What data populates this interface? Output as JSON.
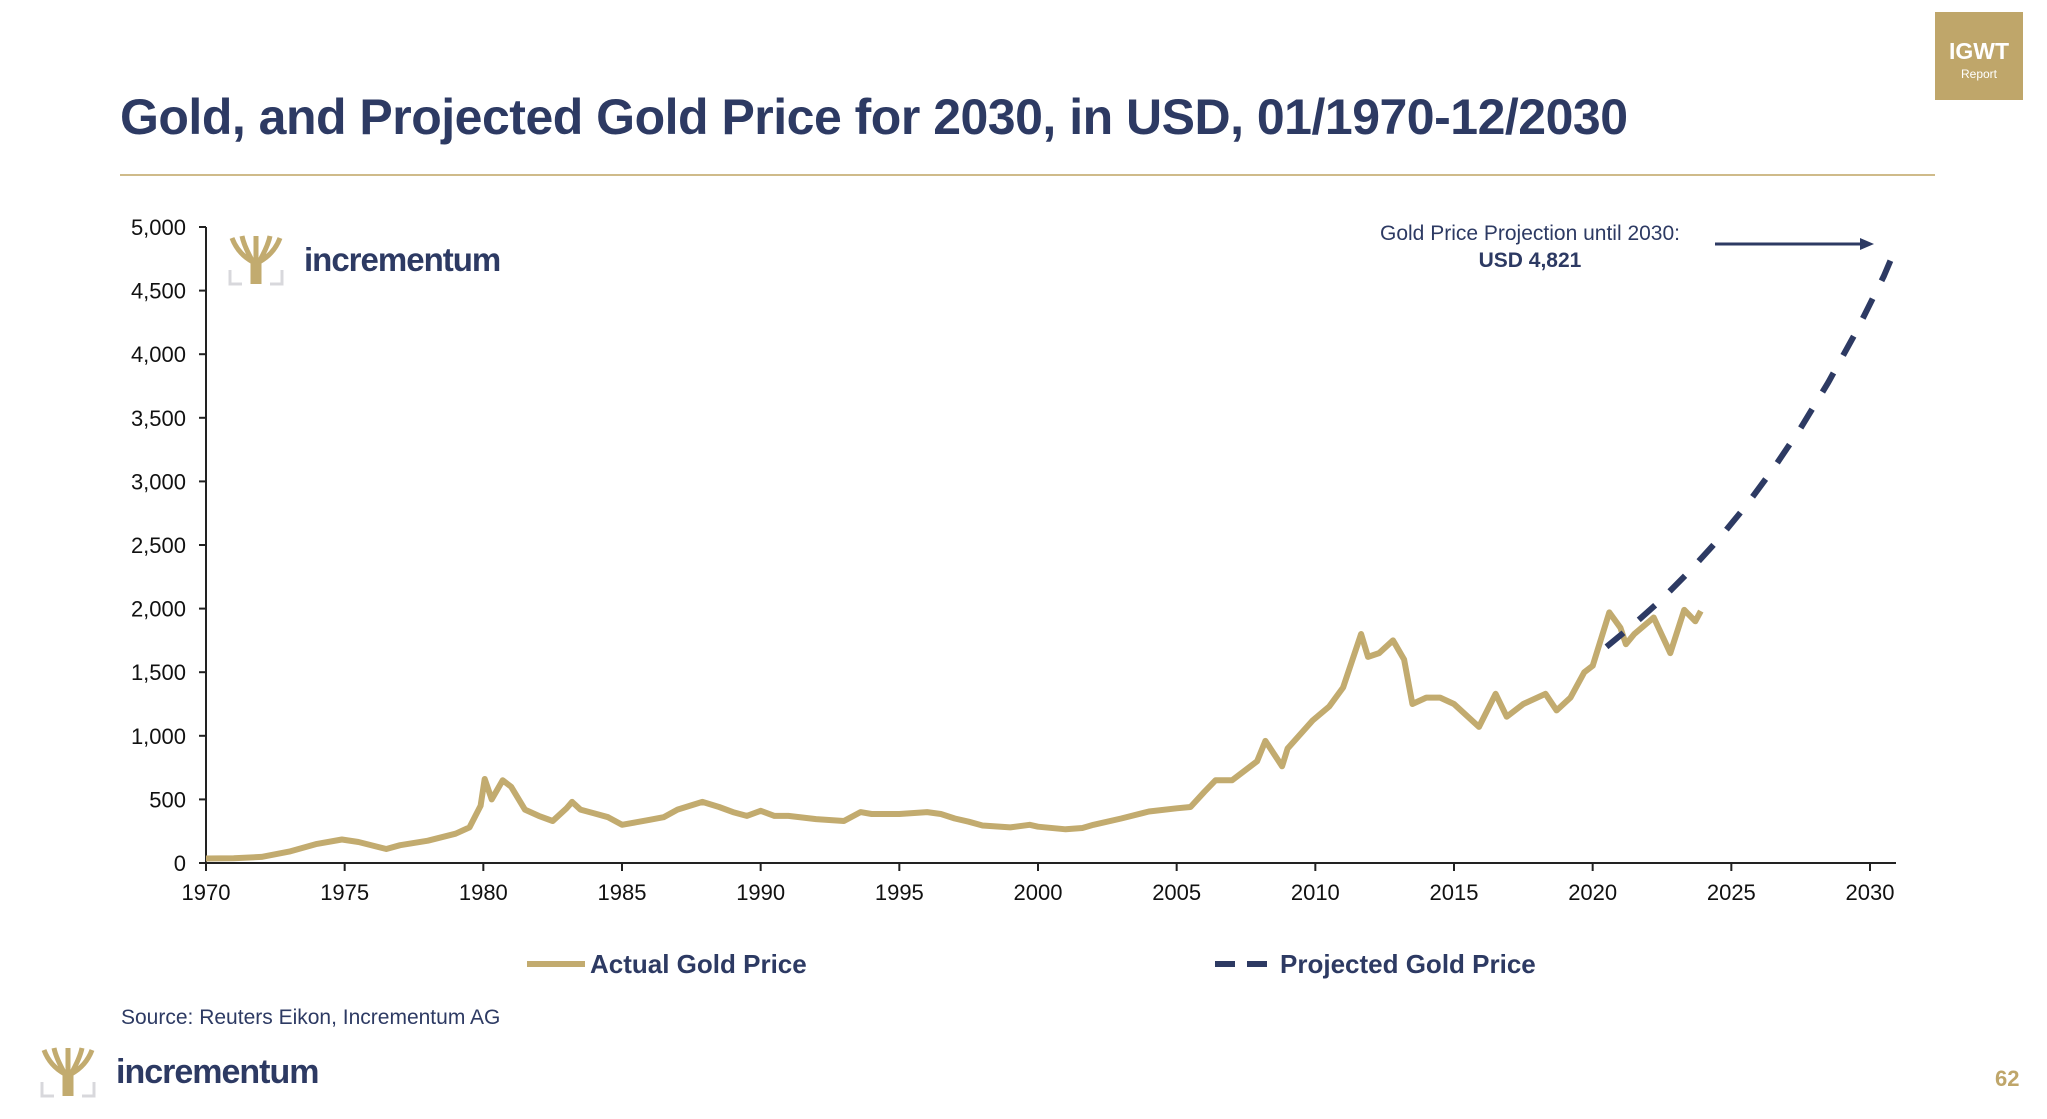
{
  "title": "Gold, and Projected Gold Price for 2030, in USD, 01/1970-12/2030",
  "badge": {
    "line1": "IGWT",
    "line2": "Report"
  },
  "brand": "incrementum",
  "source": "Source: Reuters Eikon, Incrementum AG",
  "page_number": "62",
  "colors": {
    "navy": "#2d3a63",
    "gold": "#c2ab6f"
  },
  "chart_data": {
    "type": "line",
    "xlim": [
      1970,
      2031
    ],
    "ylim": [
      0,
      5000
    ],
    "x_ticks": [
      1970,
      1975,
      1980,
      1985,
      1990,
      1995,
      2000,
      2005,
      2010,
      2015,
      2020,
      2025,
      2030
    ],
    "y_ticks": [
      0,
      500,
      1000,
      1500,
      2000,
      2500,
      3000,
      3500,
      4000,
      4500,
      5000
    ],
    "y_tick_labels": [
      "0",
      "500",
      "1,000",
      "1,500",
      "2,000",
      "2,500",
      "3,000",
      "3,500",
      "4,000",
      "4,500",
      "5,000"
    ],
    "grid": false,
    "legend": "bottom",
    "annotation": {
      "line1": "Gold Price Projection until 2030:",
      "line2": "USD 4,821"
    },
    "series": [
      {
        "name": "Actual Gold Price",
        "style": "solid",
        "color": "#c2ab6f",
        "points": [
          [
            1970,
            35
          ],
          [
            1971,
            38
          ],
          [
            1972,
            48
          ],
          [
            1973,
            90
          ],
          [
            1974,
            150
          ],
          [
            1974.9,
            185
          ],
          [
            1975.5,
            165
          ],
          [
            1976.5,
            110
          ],
          [
            1977,
            140
          ],
          [
            1978,
            175
          ],
          [
            1979,
            230
          ],
          [
            1979.5,
            280
          ],
          [
            1979.9,
            450
          ],
          [
            1980.05,
            660
          ],
          [
            1980.3,
            500
          ],
          [
            1980.7,
            650
          ],
          [
            1981,
            600
          ],
          [
            1981.5,
            420
          ],
          [
            1982,
            370
          ],
          [
            1982.5,
            330
          ],
          [
            1983,
            430
          ],
          [
            1983.2,
            480
          ],
          [
            1983.5,
            420
          ],
          [
            1984,
            390
          ],
          [
            1984.5,
            360
          ],
          [
            1985,
            300
          ],
          [
            1985.5,
            320
          ],
          [
            1986,
            340
          ],
          [
            1986.5,
            360
          ],
          [
            1987,
            420
          ],
          [
            1987.9,
            480
          ],
          [
            1988.5,
            440
          ],
          [
            1989,
            400
          ],
          [
            1989.5,
            370
          ],
          [
            1990,
            410
          ],
          [
            1990.5,
            370
          ],
          [
            1991,
            370
          ],
          [
            1992,
            345
          ],
          [
            1993,
            330
          ],
          [
            1993.6,
            400
          ],
          [
            1994,
            385
          ],
          [
            1995,
            385
          ],
          [
            1996,
            400
          ],
          [
            1996.5,
            385
          ],
          [
            1997,
            350
          ],
          [
            1997.5,
            325
          ],
          [
            1998,
            295
          ],
          [
            1999,
            280
          ],
          [
            1999.7,
            300
          ],
          [
            2000,
            285
          ],
          [
            2001,
            265
          ],
          [
            2001.6,
            275
          ],
          [
            2002,
            300
          ],
          [
            2003,
            350
          ],
          [
            2004,
            405
          ],
          [
            2005,
            430
          ],
          [
            2005.5,
            440
          ],
          [
            2006,
            560
          ],
          [
            2006.4,
            650
          ],
          [
            2007,
            650
          ],
          [
            2007.9,
            800
          ],
          [
            2008.2,
            960
          ],
          [
            2008.8,
            760
          ],
          [
            2009,
            900
          ],
          [
            2009.9,
            1120
          ],
          [
            2010.5,
            1230
          ],
          [
            2011,
            1380
          ],
          [
            2011.65,
            1800
          ],
          [
            2011.9,
            1620
          ],
          [
            2012.3,
            1650
          ],
          [
            2012.8,
            1750
          ],
          [
            2013.2,
            1600
          ],
          [
            2013.5,
            1250
          ],
          [
            2014,
            1300
          ],
          [
            2014.5,
            1300
          ],
          [
            2015,
            1250
          ],
          [
            2015.9,
            1070
          ],
          [
            2016.5,
            1330
          ],
          [
            2016.9,
            1150
          ],
          [
            2017.5,
            1250
          ],
          [
            2018.3,
            1330
          ],
          [
            2018.7,
            1200
          ],
          [
            2019.2,
            1300
          ],
          [
            2019.7,
            1500
          ],
          [
            2020,
            1550
          ],
          [
            2020.6,
            1970
          ],
          [
            2021,
            1850
          ],
          [
            2021.2,
            1720
          ],
          [
            2021.5,
            1800
          ],
          [
            2022.2,
            1930
          ],
          [
            2022.8,
            1650
          ],
          [
            2023.3,
            1990
          ],
          [
            2023.7,
            1900
          ],
          [
            2023.9,
            1980
          ]
        ]
      },
      {
        "name": "Projected Gold Price",
        "style": "dashed",
        "color": "#2d3a63",
        "points": [
          [
            2020.5,
            1700
          ],
          [
            2021.5,
            1880
          ],
          [
            2022.5,
            2075
          ],
          [
            2023.5,
            2295
          ],
          [
            2024.5,
            2535
          ],
          [
            2025.5,
            2800
          ],
          [
            2026.5,
            3095
          ],
          [
            2027.5,
            3420
          ],
          [
            2028.5,
            3780
          ],
          [
            2029.5,
            4175
          ],
          [
            2030.5,
            4615
          ],
          [
            2030.9,
            4821
          ]
        ]
      }
    ]
  }
}
